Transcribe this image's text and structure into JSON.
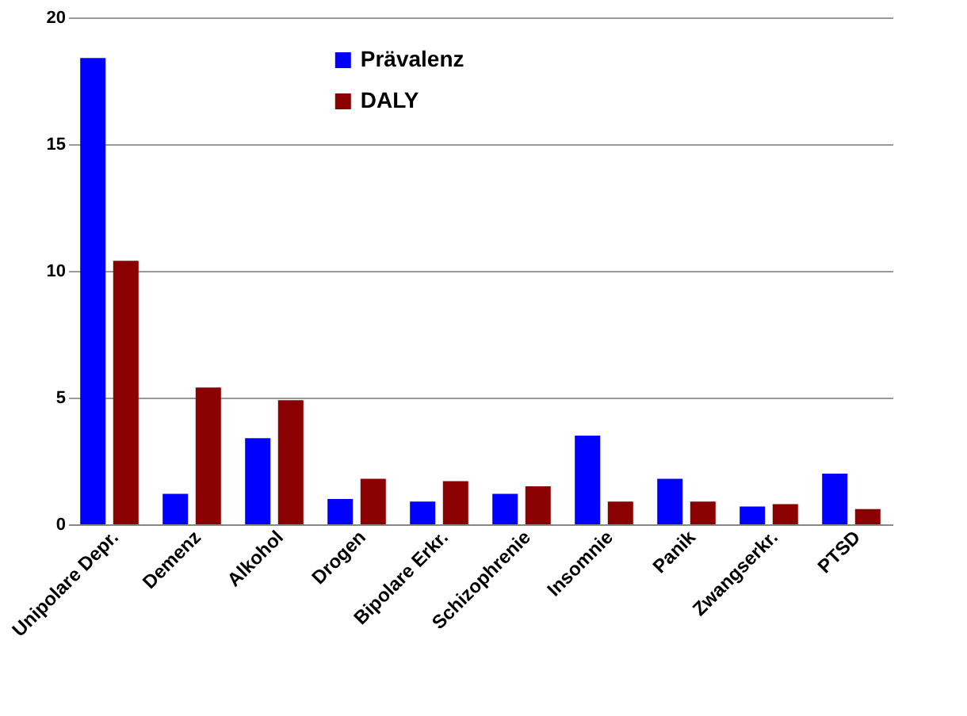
{
  "chart_data": {
    "type": "bar",
    "categories": [
      "Unipolare Depr.",
      "Demenz",
      "Alkohol",
      "Drogen",
      "Bipolare Erkr.",
      "Schizophrenie",
      "Insomnie",
      "Panik",
      "Zwangserkr.",
      "PTSD"
    ],
    "series": [
      {
        "name": "Prävalenz",
        "color": "#0000ff",
        "values": [
          18.4,
          1.2,
          3.4,
          1.0,
          0.9,
          1.2,
          3.5,
          1.8,
          0.7,
          2.0
        ]
      },
      {
        "name": "DALY",
        "color": "#8b0000",
        "values": [
          10.4,
          5.4,
          4.9,
          1.8,
          1.7,
          1.5,
          0.9,
          0.9,
          0.8,
          0.6
        ]
      }
    ],
    "ylim": [
      0,
      20
    ],
    "yticks": [
      0,
      5,
      10,
      15,
      20
    ],
    "grid": "y",
    "legend": "top"
  }
}
